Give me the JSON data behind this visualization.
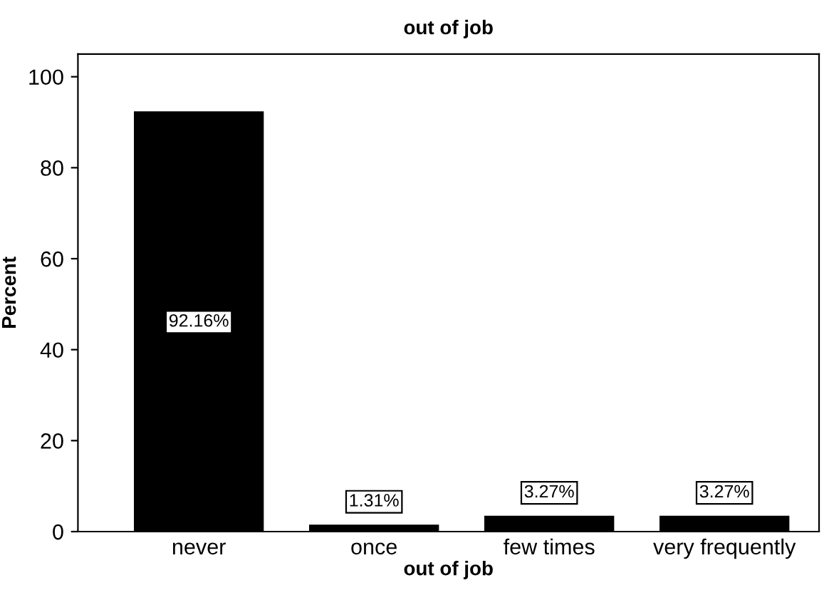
{
  "chart_data": {
    "type": "bar",
    "title": "out of job",
    "xlabel": "out of job",
    "ylabel": "Percent",
    "categories": [
      "never",
      "once",
      "few times",
      "very frequently"
    ],
    "values": [
      92.16,
      1.31,
      3.27,
      3.27
    ],
    "value_labels": [
      "92.16%",
      "1.31%",
      "3.27%",
      "3.27%"
    ],
    "color": "#000000",
    "ylim": [
      0,
      105
    ],
    "yticks": [
      0,
      20,
      40,
      60,
      80,
      100
    ],
    "grid": false,
    "legend": false
  }
}
